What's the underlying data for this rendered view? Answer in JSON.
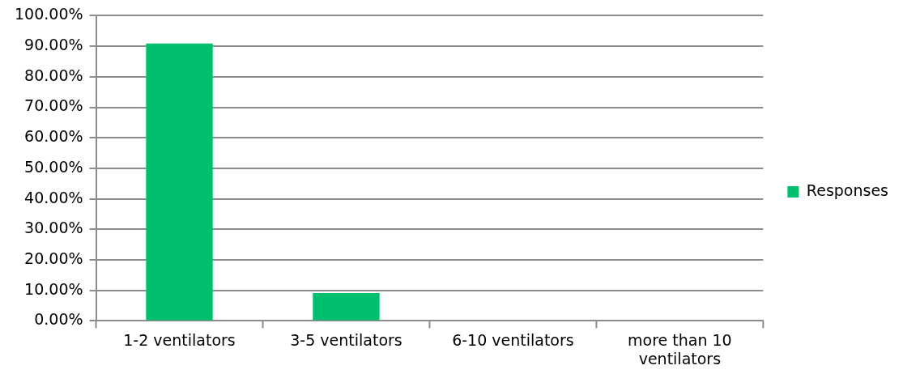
{
  "chart_data": {
    "type": "bar",
    "categories": [
      "1-2 ventilators",
      "3-5 ventilators",
      "6-10 ventilators",
      "more than 10 ventilators"
    ],
    "series": [
      {
        "name": "Responses",
        "color": "#00bf6f",
        "values": [
          90.9,
          9.1,
          0,
          0
        ]
      }
    ],
    "ylim": [
      0,
      100
    ],
    "yticks": [
      {
        "value": 0,
        "label": "0.00%"
      },
      {
        "value": 10,
        "label": "10.00%"
      },
      {
        "value": 20,
        "label": "20.00%"
      },
      {
        "value": 30,
        "label": "30.00%"
      },
      {
        "value": 40,
        "label": "40.00%"
      },
      {
        "value": 50,
        "label": "50.00%"
      },
      {
        "value": 60,
        "label": "60.00%"
      },
      {
        "value": 70,
        "label": "70.00%"
      },
      {
        "value": 80,
        "label": "80.00%"
      },
      {
        "value": 90,
        "label": "90.00%"
      },
      {
        "value": 100,
        "label": "100.00%"
      }
    ],
    "grid": "y",
    "legend": "right"
  }
}
